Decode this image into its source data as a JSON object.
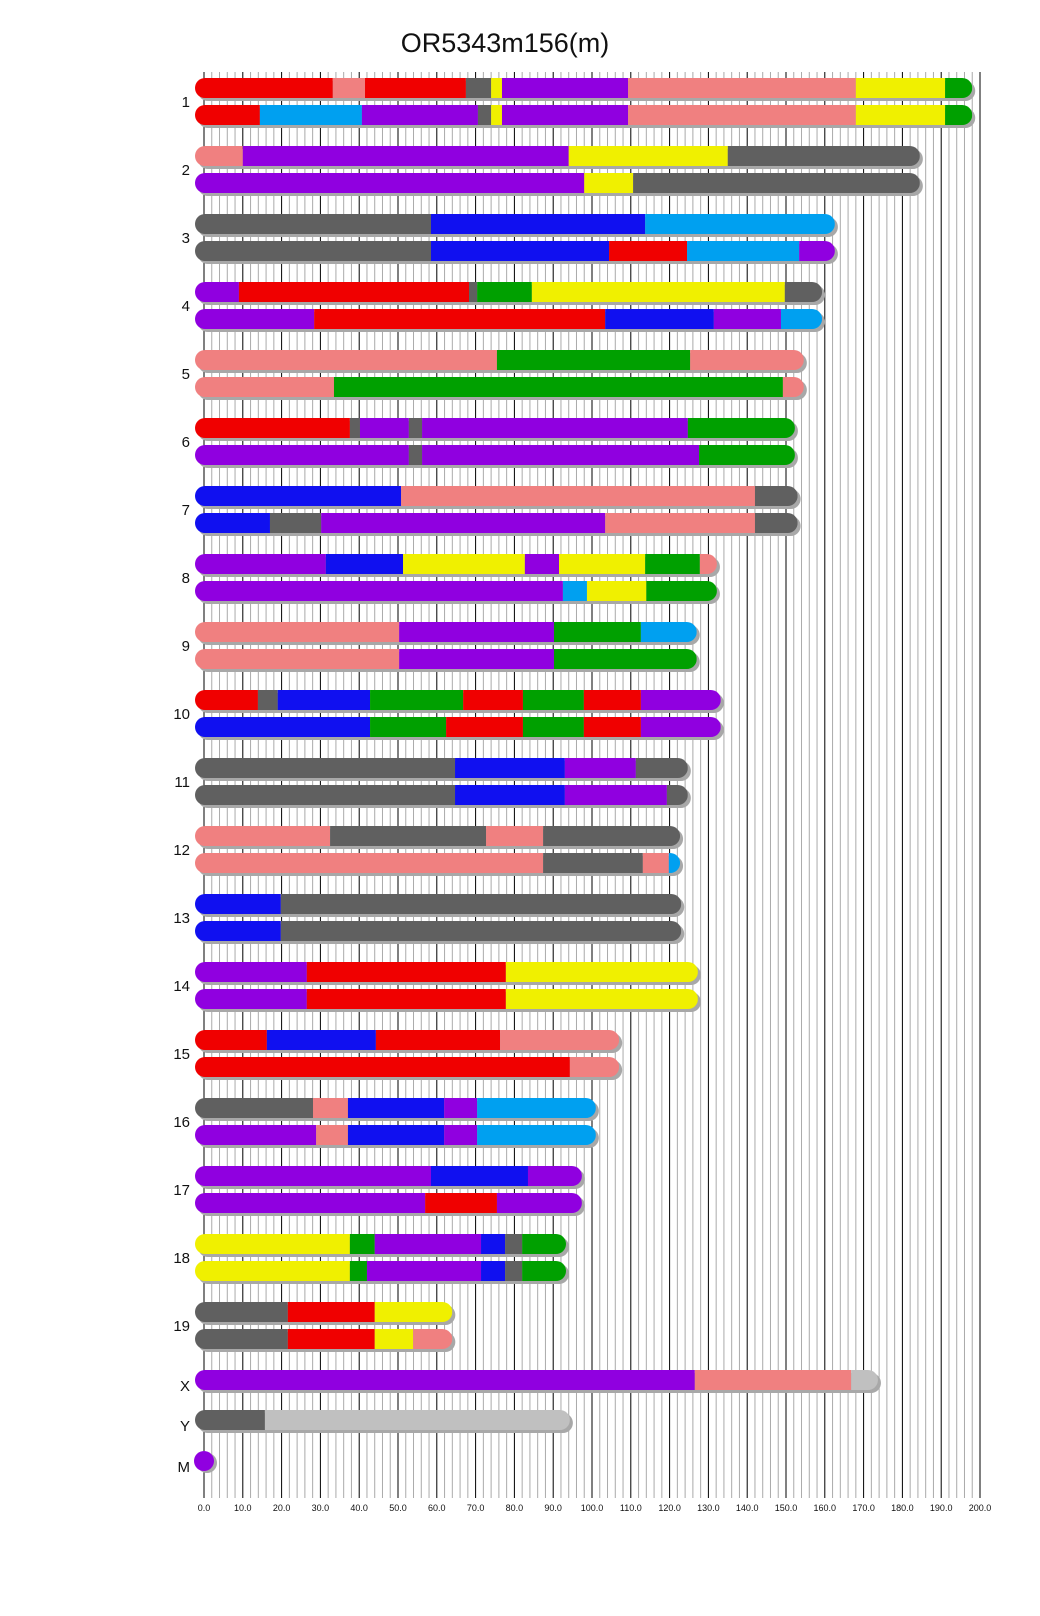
{
  "title": "OR5343m156(m)",
  "colors": {
    "R": "#f00000",
    "S": "#f08080",
    "G": "#606060",
    "Y": "#f0f000",
    "P": "#9000e0",
    "N": "#00a000",
    "B": "#1010f0",
    "L": "#00a0f0",
    "Q": "#c0c0c0"
  },
  "chart_data": {
    "type": "haplotype-map",
    "title": "OR5343m156(m)",
    "xlim": [
      0,
      200
    ],
    "x_ticks": [
      "0.0",
      "10.0",
      "20.0",
      "30.0",
      "40.0",
      "50.0",
      "60.0",
      "70.0",
      "80.0",
      "90.0",
      "100.0",
      "110.0",
      "120.0",
      "130.0",
      "140.0",
      "150.0",
      "160.0",
      "170.0",
      "180.0",
      "190.0",
      "200.0"
    ],
    "chromosomes": [
      {
        "name": "1",
        "haplotypes": [
          [
            [
              "R",
              33.2
            ],
            [
              "S",
              41.5
            ],
            [
              "R",
              67.5
            ],
            [
              "G",
              74
            ],
            [
              "Y",
              76.8
            ],
            [
              "P",
              109.3
            ],
            [
              "S",
              168
            ],
            [
              "Y",
              191
            ],
            [
              "N",
              198
            ]
          ],
          [
            [
              "R",
              14.4
            ],
            [
              "L",
              40.7
            ],
            [
              "P",
              70.6
            ],
            [
              "G",
              74
            ],
            [
              "Y",
              76.8
            ],
            [
              "P",
              109.3
            ],
            [
              "S",
              168
            ],
            [
              "Y",
              191
            ],
            [
              "N",
              198
            ]
          ]
        ]
      },
      {
        "name": "2",
        "haplotypes": [
          [
            [
              "S",
              10
            ],
            [
              "P",
              94
            ],
            [
              "Y",
              135
            ],
            [
              "G",
              184.5
            ]
          ],
          [
            [
              "P",
              98
            ],
            [
              "Y",
              110.6
            ],
            [
              "G",
              184.5
            ]
          ]
        ]
      },
      {
        "name": "3",
        "haplotypes": [
          [
            [
              "G",
              58.5
            ],
            [
              "B",
              113.7
            ],
            [
              "L",
              162.6
            ]
          ],
          [
            [
              "G",
              58.5
            ],
            [
              "B",
              104.4
            ],
            [
              "R",
              124.5
            ],
            [
              "L",
              153.4
            ],
            [
              "P",
              162.6
            ]
          ]
        ]
      },
      {
        "name": "4",
        "haplotypes": [
          [
            [
              "P",
              9
            ],
            [
              "R",
              68.3
            ],
            [
              "G",
              70.4
            ],
            [
              "N",
              84.5
            ],
            [
              "Y",
              149.7
            ],
            [
              "G",
              159.3
            ]
          ],
          [
            [
              "P",
              28.4
            ],
            [
              "R",
              103.4
            ],
            [
              "B",
              131.4
            ],
            [
              "P",
              148.7
            ],
            [
              "L",
              159.3
            ]
          ]
        ]
      },
      {
        "name": "5",
        "haplotypes": [
          [
            [
              "S",
              75.5
            ],
            [
              "N",
              125.3
            ],
            [
              "S",
              154.6
            ]
          ],
          [
            [
              "S",
              33.5
            ],
            [
              "N",
              149.2
            ],
            [
              "S",
              154.6
            ]
          ]
        ]
      },
      {
        "name": "6",
        "haplotypes": [
          [
            [
              "R",
              37.6
            ],
            [
              "G",
              40.2
            ],
            [
              "P",
              52.8
            ],
            [
              "G",
              56.2
            ],
            [
              "P",
              124.7
            ],
            [
              "N",
              152.3
            ]
          ],
          [
            [
              "P",
              52.8
            ],
            [
              "G",
              56.2
            ],
            [
              "P",
              127.6
            ],
            [
              "N",
              152.3
            ]
          ]
        ]
      },
      {
        "name": "7",
        "haplotypes": [
          [
            [
              "B",
              50.8
            ],
            [
              "S",
              142
            ],
            [
              "G",
              153
            ]
          ],
          [
            [
              "B",
              17
            ],
            [
              "G",
              30.2
            ],
            [
              "P",
              103.4
            ],
            [
              "S",
              142
            ],
            [
              "G",
              153
            ]
          ]
        ]
      },
      {
        "name": "8",
        "haplotypes": [
          [
            [
              "P",
              31.4
            ],
            [
              "B",
              51.3
            ],
            [
              "Y",
              82.7
            ],
            [
              "P",
              91.5
            ],
            [
              "Y",
              113.7
            ],
            [
              "N",
              127.8
            ],
            [
              "S",
              132.2
            ]
          ],
          [
            [
              "P",
              92.5
            ],
            [
              "L",
              98.7
            ],
            [
              "Y",
              114
            ],
            [
              "N",
              132.2
            ]
          ]
        ]
      },
      {
        "name": "9",
        "haplotypes": [
          [
            [
              "S",
              50.3
            ],
            [
              "P",
              90.2
            ],
            [
              "N",
              112.6
            ],
            [
              "L",
              127
            ]
          ],
          [
            [
              "S",
              50.3
            ],
            [
              "P",
              90.2
            ],
            [
              "N",
              127
            ]
          ]
        ]
      },
      {
        "name": "10",
        "haplotypes": [
          [
            [
              "R",
              13.9
            ],
            [
              "G",
              19
            ],
            [
              "B",
              42.8
            ],
            [
              "N",
              66.8
            ],
            [
              "R",
              82.2
            ],
            [
              "N",
              97.9
            ],
            [
              "R",
              112.6
            ],
            [
              "P",
              133.2
            ]
          ],
          [
            [
              "B",
              42.8
            ],
            [
              "N",
              62.4
            ],
            [
              "R",
              82.2
            ],
            [
              "N",
              97.9
            ],
            [
              "R",
              112.6
            ],
            [
              "P",
              133.2
            ]
          ]
        ]
      },
      {
        "name": "11",
        "haplotypes": [
          [
            [
              "G",
              64.7
            ],
            [
              "B",
              93
            ],
            [
              "P",
              111.3
            ],
            [
              "G",
              124.7
            ]
          ],
          [
            [
              "G",
              64.7
            ],
            [
              "B",
              93
            ],
            [
              "P",
              119.3
            ],
            [
              "G",
              124.7
            ]
          ]
        ]
      },
      {
        "name": "12",
        "haplotypes": [
          [
            [
              "S",
              32.5
            ],
            [
              "G",
              72.7
            ],
            [
              "S",
              87.4
            ],
            [
              "G",
              122.7
            ]
          ],
          [
            [
              "S",
              87.4
            ],
            [
              "G",
              113.1
            ],
            [
              "S",
              119.8
            ],
            [
              "L",
              122.7
            ]
          ]
        ]
      },
      {
        "name": "13",
        "haplotypes": [
          [
            [
              "B",
              19.8
            ],
            [
              "G",
              123
            ]
          ],
          [
            [
              "B",
              19.8
            ],
            [
              "G",
              123
            ]
          ]
        ]
      },
      {
        "name": "14",
        "haplotypes": [
          [
            [
              "P",
              26.5
            ],
            [
              "R",
              77.8
            ],
            [
              "Y",
              127.3
            ]
          ],
          [
            [
              "P",
              26.5
            ],
            [
              "R",
              77.8
            ],
            [
              "Y",
              127.3
            ]
          ]
        ]
      },
      {
        "name": "15",
        "haplotypes": [
          [
            [
              "R",
              16.2
            ],
            [
              "B",
              44.3
            ],
            [
              "R",
              76.3
            ],
            [
              "S",
              107
            ]
          ],
          [
            [
              "R",
              94.3
            ],
            [
              "S",
              107
            ]
          ]
        ]
      },
      {
        "name": "16",
        "haplotypes": [
          [
            [
              "G",
              28.1
            ],
            [
              "S",
              37.1
            ],
            [
              "B",
              61.9
            ],
            [
              "P",
              70.4
            ],
            [
              "L",
              101
            ]
          ],
          [
            [
              "P",
              28.9
            ],
            [
              "S",
              37.1
            ],
            [
              "B",
              61.9
            ],
            [
              "P",
              70.4
            ],
            [
              "L",
              101
            ]
          ]
        ]
      },
      {
        "name": "17",
        "haplotypes": [
          [
            [
              "P",
              58.5
            ],
            [
              "B",
              83.5
            ],
            [
              "P",
              97.4
            ]
          ],
          [
            [
              "P",
              57
            ],
            [
              "R",
              75.5
            ],
            [
              "P",
              97.4
            ]
          ]
        ]
      },
      {
        "name": "18",
        "haplotypes": [
          [
            [
              "Y",
              37.6
            ],
            [
              "N",
              44
            ],
            [
              "P",
              71.4
            ],
            [
              "B",
              77.6
            ],
            [
              "G",
              82
            ],
            [
              "N",
              93.3
            ]
          ],
          [
            [
              "Y",
              37.6
            ],
            [
              "N",
              42
            ],
            [
              "P",
              71.4
            ],
            [
              "B",
              77.6
            ],
            [
              "G",
              82
            ],
            [
              "N",
              93.3
            ]
          ]
        ]
      },
      {
        "name": "19",
        "haplotypes": [
          [
            [
              "G",
              21.6
            ],
            [
              "R",
              44
            ],
            [
              "Y",
              64
            ]
          ],
          [
            [
              "G",
              21.6
            ],
            [
              "R",
              44
            ],
            [
              "Y",
              53.9
            ],
            [
              "S",
              64
            ]
          ]
        ]
      },
      {
        "name": "X",
        "haplotypes": [
          [
            [
              "P",
              126.5
            ],
            [
              "S",
              166.8
            ],
            [
              "Q",
              173.7
            ]
          ]
        ]
      },
      {
        "name": "Y",
        "haplotypes": [
          [
            [
              "G",
              15.7
            ],
            [
              "Q",
              94.3
            ]
          ]
        ]
      },
      {
        "name": "M",
        "haplotypes": [
          [
            [
              "P",
              1.5
            ]
          ]
        ]
      }
    ]
  }
}
